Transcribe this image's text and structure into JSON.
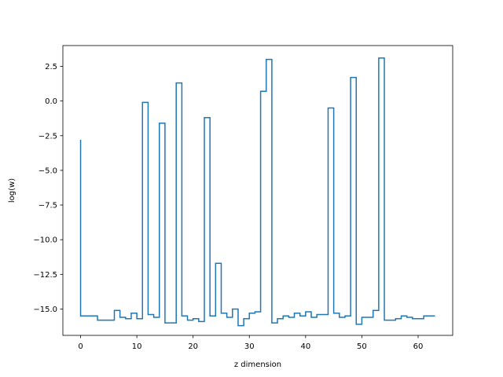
{
  "chart_data": {
    "type": "line",
    "drawstyle": "steps",
    "title": "",
    "xlabel": "z dimension",
    "ylabel": "log(w)",
    "xlim": [
      -3.15,
      66.15
    ],
    "ylim": [
      -16.9,
      4.0
    ],
    "xticks": [
      0,
      10,
      20,
      30,
      40,
      50,
      60
    ],
    "yticks": [
      2.5,
      0.0,
      -2.5,
      -5.0,
      -7.5,
      -10.0,
      -12.5,
      -15.0
    ],
    "ytick_labels": [
      "2.5",
      "0.0",
      "−2.5",
      "−5.0",
      "−7.5",
      "−10.0",
      "−12.5",
      "−15.0"
    ],
    "grid": false,
    "color": "#1f77b4",
    "series": [
      {
        "x": [
          0,
          1,
          2,
          3,
          4,
          5,
          6,
          7,
          8,
          9,
          10,
          11,
          12,
          13,
          14,
          15,
          16,
          17,
          18,
          19,
          20,
          21,
          22,
          23,
          24,
          25,
          26,
          27,
          28,
          29,
          30,
          31,
          32,
          33,
          34,
          35,
          36,
          37,
          38,
          39,
          40,
          41,
          42,
          43,
          44,
          45,
          46,
          47,
          48,
          49,
          50,
          51,
          52,
          53,
          54,
          55,
          56,
          57,
          58,
          59,
          60,
          61,
          62,
          63
        ],
        "y": [
          -2.8,
          -15.5,
          -15.5,
          -15.5,
          -15.8,
          -15.8,
          -15.8,
          -15.1,
          -15.6,
          -15.7,
          -15.3,
          -15.7,
          -0.1,
          -15.4,
          -15.6,
          -1.6,
          -16.0,
          -16.0,
          1.3,
          -15.5,
          -15.8,
          -15.7,
          -15.9,
          -1.2,
          -15.5,
          -11.7,
          -15.3,
          -15.6,
          -15.0,
          -16.2,
          -15.7,
          -15.3,
          -15.2,
          0.7,
          3.0,
          -16.0,
          -15.7,
          -15.5,
          -15.6,
          -15.3,
          -15.5,
          -15.2,
          -15.6,
          -15.4,
          -15.4,
          -0.5,
          -15.3,
          -15.6,
          -15.5,
          1.7,
          -16.1,
          -15.6,
          -15.6,
          -15.1,
          3.1,
          -15.8,
          -15.8,
          -15.7,
          -15.5,
          -15.6,
          -15.7,
          -15.7,
          -15.5,
          -15.5
        ]
      }
    ]
  }
}
